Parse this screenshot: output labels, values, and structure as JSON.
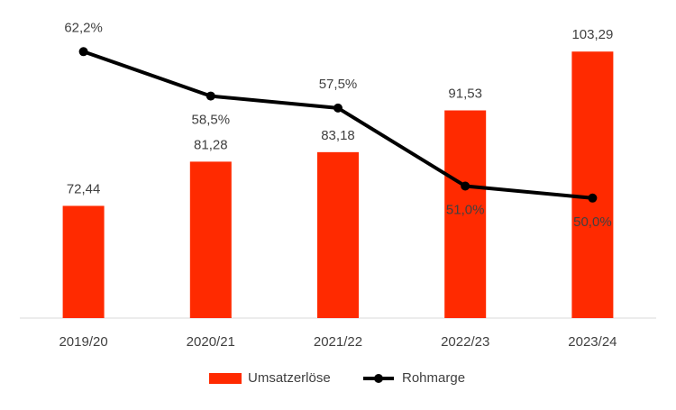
{
  "chart_data": {
    "type": "bar-line",
    "categories": [
      "2019/20",
      "2020/21",
      "2021/22",
      "2022/23",
      "2023/24"
    ],
    "series": [
      {
        "name": "Umsatzerlöse",
        "type": "bar",
        "color": "#ff2a00",
        "values": [
          72.44,
          81.28,
          83.18,
          91.53,
          103.29
        ],
        "value_labels": [
          "72,44",
          "81,28",
          "83,18",
          "91,53",
          "103,29"
        ]
      },
      {
        "name": "Rohmarge",
        "type": "line",
        "axis": "y2",
        "color": "#000000",
        "values": [
          62.2,
          58.5,
          57.5,
          51.0,
          50.0
        ],
        "value_labels": [
          "62,2%",
          "58,5%",
          "57,5%",
          "51,0%",
          "50,0%"
        ]
      }
    ],
    "ylim": [
      50,
      110
    ],
    "y2lim": [
      40,
      65
    ],
    "legend": "bottom"
  }
}
